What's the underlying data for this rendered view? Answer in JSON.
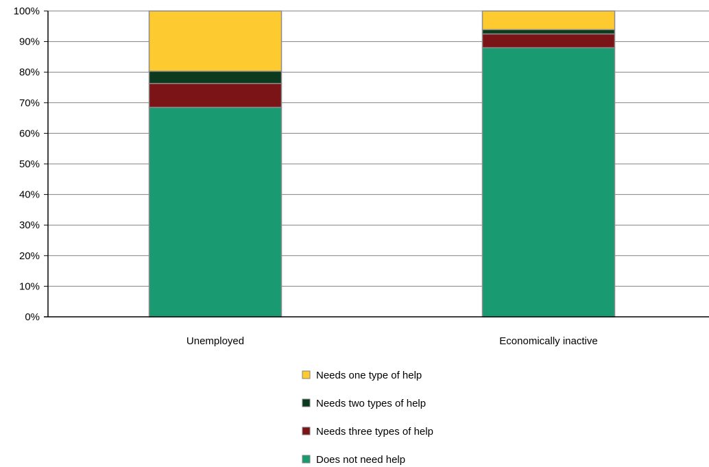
{
  "chart_data": {
    "type": "bar",
    "stacked": true,
    "percent_stacked": true,
    "categories": [
      "Unemployed",
      "Economically inactive"
    ],
    "series": [
      {
        "name": "Does not need help",
        "color": "#1a9a70",
        "values": [
          68.5,
          88.0
        ]
      },
      {
        "name": "Needs three types of help",
        "color": "#7b1417",
        "values": [
          7.8,
          4.5
        ]
      },
      {
        "name": "Needs two types of help",
        "color": "#0c3a1e",
        "values": [
          4.0,
          1.4
        ]
      },
      {
        "name": "Needs one type of help",
        "color": "#fdca30",
        "values": [
          19.7,
          6.1
        ]
      }
    ],
    "legend_order": [
      "Needs one type of help",
      "Needs two types of help",
      "Needs three types of help",
      "Does not need help"
    ],
    "y_ticks": [
      "0%",
      "10%",
      "20%",
      "30%",
      "40%",
      "50%",
      "60%",
      "70%",
      "80%",
      "90%",
      "100%"
    ],
    "ylim": [
      0,
      100
    ],
    "grid": true,
    "legend_position": "bottom-center",
    "title": "",
    "xlabel": "",
    "ylabel": ""
  }
}
